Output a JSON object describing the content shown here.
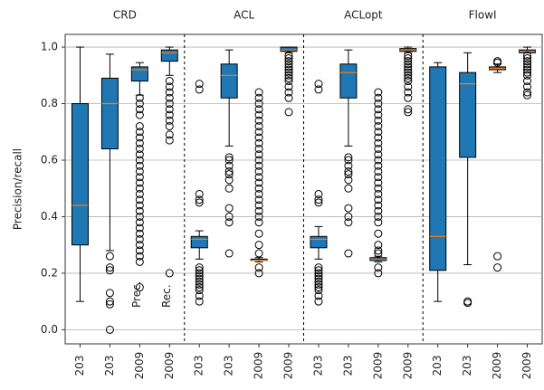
{
  "chart_data": {
    "type": "box",
    "ylabel": "Precision/recall",
    "groups": [
      "CRD",
      "ACL",
      "ACLopt",
      "FlowI"
    ],
    "annotations": [
      "Prec.",
      "Rec."
    ],
    "categories": [
      "203",
      "203",
      "2009",
      "2009",
      "203",
      "203",
      "2009",
      "2009",
      "203",
      "203",
      "2009",
      "2009",
      "203",
      "203",
      "2009",
      "2009"
    ],
    "box_color": "#1f77b4",
    "median_color": "#ff7f0e",
    "ylim": [
      -0.05,
      1.045
    ],
    "yticks": [
      {
        "value": 0,
        "label": "0.0"
      },
      0.2,
      0.4,
      0.6,
      0.8,
      {
        "value": 1,
        "label": "1.0"
      }
    ],
    "grid": true,
    "boxes": [
      {
        "whislo": 0.1,
        "q1": 0.3,
        "med": 0.44,
        "q3": 0.8,
        "whishi": 1.0,
        "fliers": []
      },
      {
        "whislo": 0.28,
        "q1": 0.64,
        "med": 0.8,
        "q3": 0.89,
        "whishi": 0.975,
        "fliers": [
          0.26,
          0.22,
          0.21,
          0.13,
          0.1,
          0.09,
          0.0
        ]
      },
      {
        "whislo": 0.83,
        "q1": 0.88,
        "med": 0.92,
        "q3": 0.93,
        "whishi": 0.945,
        "fliers": [
          0.82,
          0.8,
          0.78,
          0.76,
          0.72,
          0.7,
          0.68,
          0.66,
          0.64,
          0.62,
          0.6,
          0.58,
          0.56,
          0.54,
          0.52,
          0.5,
          0.48,
          0.46,
          0.44,
          0.42,
          0.4,
          0.38,
          0.36,
          0.34,
          0.32,
          0.3,
          0.28,
          0.26,
          0.24,
          0.15
        ]
      },
      {
        "whislo": 0.9,
        "q1": 0.95,
        "med": 0.98,
        "q3": 0.99,
        "whishi": 1.0,
        "fliers": [
          0.88,
          0.86,
          0.84,
          0.82,
          0.8,
          0.78,
          0.76,
          0.74,
          0.72,
          0.69,
          0.67,
          0.2
        ]
      },
      {
        "whislo": 0.25,
        "q1": 0.29,
        "med": 0.32,
        "q3": 0.33,
        "whishi": 0.35,
        "fliers": [
          0.87,
          0.85,
          0.48,
          0.46,
          0.45,
          0.22,
          0.21,
          0.2,
          0.19,
          0.18,
          0.17,
          0.16,
          0.15,
          0.14,
          0.12,
          0.1
        ]
      },
      {
        "whislo": 0.65,
        "q1": 0.82,
        "med": 0.9,
        "q3": 0.94,
        "whishi": 0.99,
        "fliers": [
          0.61,
          0.6,
          0.58,
          0.56,
          0.55,
          0.53,
          0.5,
          0.43,
          0.4,
          0.38,
          0.27
        ]
      },
      {
        "whislo": 0.24,
        "q1": 0.245,
        "med": 0.245,
        "q3": 0.25,
        "whishi": 0.255,
        "fliers": [
          0.84,
          0.82,
          0.8,
          0.78,
          0.76,
          0.74,
          0.72,
          0.7,
          0.68,
          0.66,
          0.64,
          0.62,
          0.6,
          0.58,
          0.56,
          0.54,
          0.52,
          0.5,
          0.48,
          0.46,
          0.44,
          0.42,
          0.4,
          0.38,
          0.34,
          0.3,
          0.27,
          0.22,
          0.2
        ]
      },
      {
        "whislo": 0.98,
        "q1": 0.985,
        "med": 0.99,
        "q3": 1.0,
        "whishi": 1.0,
        "fliers": [
          0.97,
          0.96,
          0.95,
          0.94,
          0.93,
          0.92,
          0.91,
          0.9,
          0.89,
          0.88,
          0.86,
          0.84,
          0.82,
          0.77
        ]
      },
      {
        "whislo": 0.25,
        "q1": 0.29,
        "med": 0.32,
        "q3": 0.33,
        "whishi": 0.365,
        "fliers": [
          0.87,
          0.85,
          0.48,
          0.46,
          0.45,
          0.22,
          0.21,
          0.2,
          0.19,
          0.18,
          0.17,
          0.16,
          0.15,
          0.14,
          0.12,
          0.1
        ]
      },
      {
        "whislo": 0.65,
        "q1": 0.82,
        "med": 0.91,
        "q3": 0.94,
        "whishi": 0.99,
        "fliers": [
          0.61,
          0.6,
          0.58,
          0.56,
          0.55,
          0.53,
          0.5,
          0.43,
          0.4,
          0.38,
          0.27
        ]
      },
      {
        "whislo": 0.24,
        "q1": 0.245,
        "med": 0.25,
        "q3": 0.255,
        "whishi": 0.26,
        "fliers": [
          0.84,
          0.82,
          0.8,
          0.78,
          0.76,
          0.74,
          0.72,
          0.7,
          0.68,
          0.66,
          0.64,
          0.62,
          0.6,
          0.58,
          0.56,
          0.54,
          0.52,
          0.5,
          0.48,
          0.46,
          0.44,
          0.42,
          0.4,
          0.38,
          0.34,
          0.3,
          0.28,
          0.27,
          0.22,
          0.2
        ]
      },
      {
        "whislo": 0.98,
        "q1": 0.985,
        "med": 0.99,
        "q3": 0.995,
        "whishi": 1.0,
        "fliers": [
          0.97,
          0.96,
          0.95,
          0.94,
          0.93,
          0.92,
          0.91,
          0.9,
          0.89,
          0.88,
          0.86,
          0.84,
          0.82,
          0.78,
          0.77
        ]
      },
      {
        "whislo": 0.1,
        "q1": 0.21,
        "med": 0.33,
        "q3": 0.93,
        "whishi": 0.945,
        "fliers": []
      },
      {
        "whislo": 0.23,
        "q1": 0.61,
        "med": 0.87,
        "q3": 0.91,
        "whishi": 0.98,
        "fliers": [
          0.1,
          0.095
        ]
      },
      {
        "whislo": 0.91,
        "q1": 0.92,
        "med": 0.925,
        "q3": 0.93,
        "whishi": 0.94,
        "fliers": [
          0.95,
          0.945,
          0.26,
          0.22
        ]
      },
      {
        "whislo": 0.98,
        "q1": 0.98,
        "med": 0.985,
        "q3": 0.99,
        "whishi": 1.0,
        "fliers": [
          0.97,
          0.96,
          0.95,
          0.94,
          0.93,
          0.92,
          0.91,
          0.9,
          0.88,
          0.86,
          0.84,
          0.83
        ]
      }
    ]
  }
}
